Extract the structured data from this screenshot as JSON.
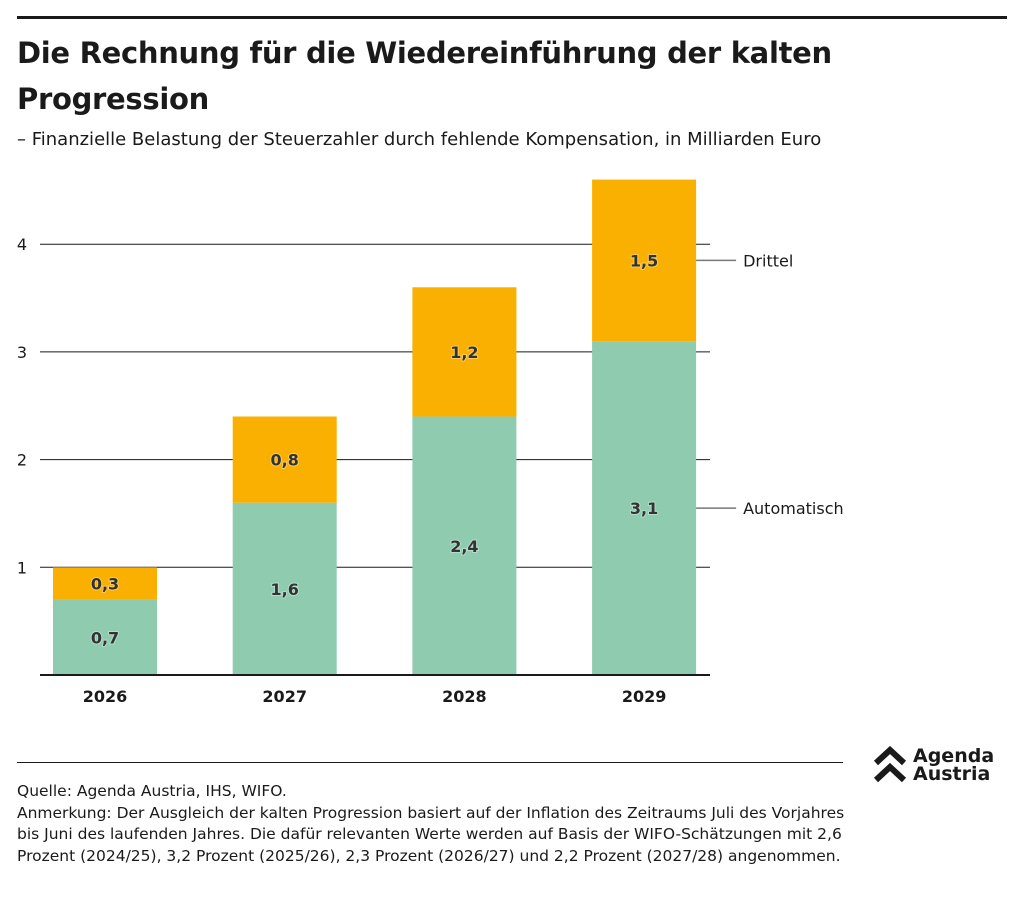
{
  "title": "Die Rechnung für die Wiedereinführung der kalten Progression",
  "subtitle": "– Finanzielle Belastung der Steuerzahler durch fehlende Kompensation, in Milliarden Euro",
  "chart_data": {
    "type": "bar",
    "stacked": true,
    "categories": [
      "2026",
      "2027",
      "2028",
      "2029"
    ],
    "series": [
      {
        "name": "Automatisch",
        "values": [
          0.7,
          1.6,
          2.4,
          3.1
        ],
        "labels": [
          "0,7",
          "1,6",
          "2,4",
          "3,1"
        ],
        "color": "#8ecbaf"
      },
      {
        "name": "Drittel",
        "values": [
          0.3,
          0.8,
          1.2,
          1.5
        ],
        "labels": [
          "0,3",
          "0,8",
          "1,2",
          "1,5"
        ],
        "color": "#f9b000"
      }
    ],
    "ylim": [
      0,
      4.6
    ],
    "yticks": [
      1,
      2,
      3,
      4
    ],
    "ytick_labels": [
      "1",
      "2",
      "3",
      "4"
    ],
    "grid": true,
    "legend": "direct labels right"
  },
  "source": "Quelle: Agenda Austria, IHS, WIFO.",
  "note": "Anmerkung: Der Ausgleich der kalten Progression basiert auf der Inflation des Zeitraums Juli des Vorjahres bis Juni des laufenden Jahres. Die dafür relevanten Werte werden auf Basis der WIFO-Schätzungen mit 2,6 Prozent (2024/25), 3,2 Prozent (2025/26), 2,3 Prozent (2026/27) und 2,2 Prozent (2027/28) angenommen.",
  "logo": {
    "line1": "Agenda",
    "line2": "Austria"
  }
}
